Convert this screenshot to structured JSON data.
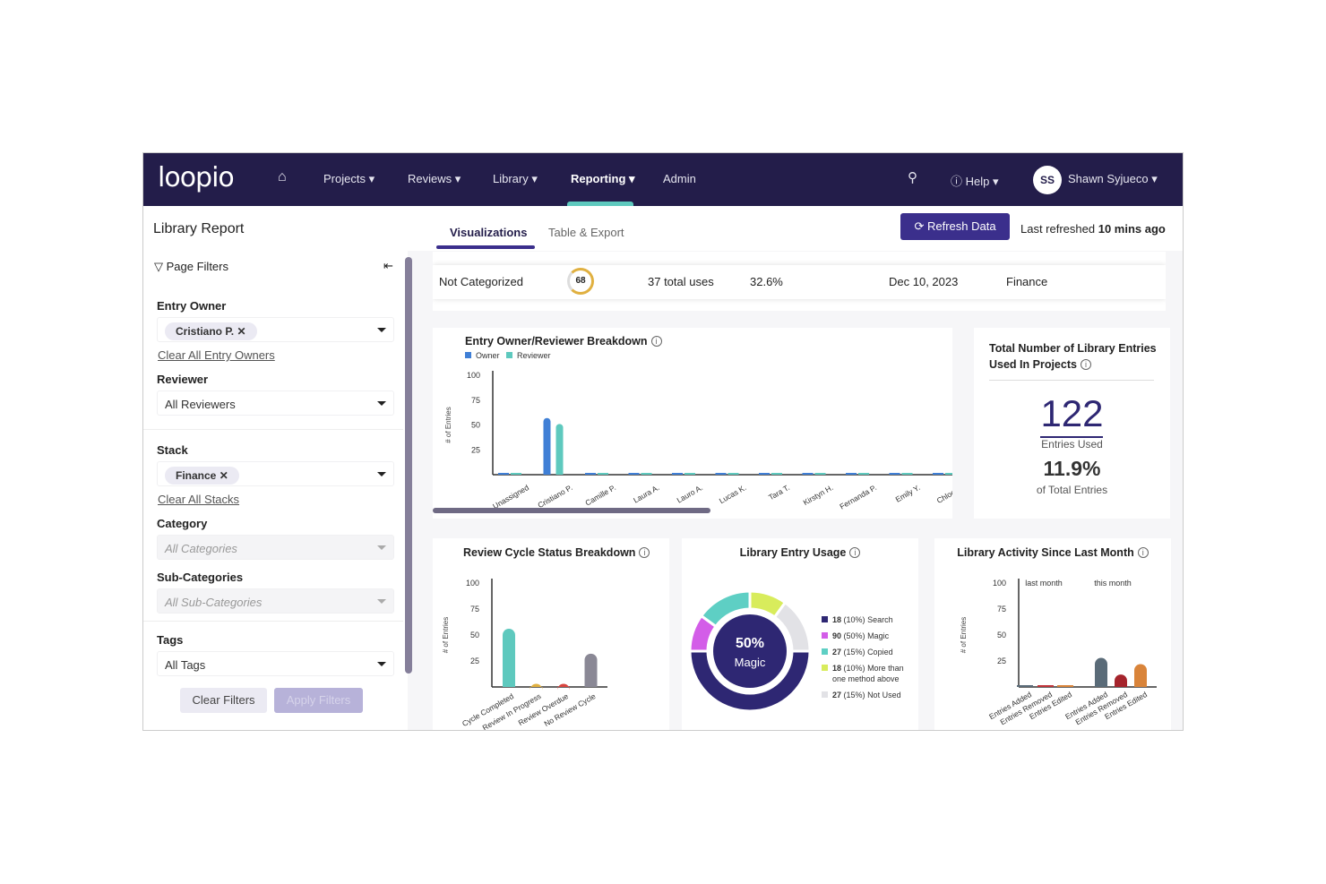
{
  "nav": {
    "logo": "loopio",
    "items": [
      "Projects",
      "Reviews",
      "Library",
      "Reporting",
      "Admin"
    ],
    "help": "Help",
    "user_initials": "SS",
    "user_name": "Shawn Syjueco"
  },
  "header": {
    "title": "Library Report",
    "tabs": [
      "Visualizations",
      "Table & Export"
    ],
    "refresh_label": "Refresh Data",
    "last_refreshed_prefix": "Last refreshed",
    "last_refreshed_value": "10 mins ago"
  },
  "filters": {
    "title": "Page Filters",
    "entry_owner": {
      "label": "Entry Owner",
      "chip": "Cristiano P.",
      "clear": "Clear All Entry Owners"
    },
    "reviewer": {
      "label": "Reviewer",
      "value": "All Reviewers"
    },
    "stack": {
      "label": "Stack",
      "chip": "Finance",
      "clear": "Clear All Stacks"
    },
    "category": {
      "label": "Category",
      "placeholder": "All Categories"
    },
    "subcategory": {
      "label": "Sub-Categories",
      "placeholder": "All Sub-Categories"
    },
    "tags": {
      "label": "Tags",
      "value": "All Tags"
    },
    "clear_btn": "Clear Filters",
    "apply_btn": "Apply Filters"
  },
  "table_row": {
    "name": "Not Categorized",
    "score": "68",
    "uses": "37 total uses",
    "percent": "32.6%",
    "date": "Dec 10, 2023",
    "stack": "Finance"
  },
  "total_card": {
    "title": "Total Number of Library Entries Used In Projects",
    "count": "122",
    "count_label": "Entries Used",
    "percent": "11.9%",
    "percent_label": "of Total Entries"
  },
  "chart_data": [
    {
      "type": "bar",
      "title": "Entry Owner/Reviewer Breakdown",
      "ylabel": "# of Entries",
      "ylim": [
        0,
        100
      ],
      "yticks": [
        100,
        75,
        50,
        25
      ],
      "categories": [
        "Unassigned",
        "Cristiano P.",
        "Camille P.",
        "Laura A.",
        "Lauro A.",
        "Lucas K.",
        "Tara T.",
        "Kirstyn H.",
        "Fernanda P.",
        "Emily Y.",
        "Chloe S."
      ],
      "series": [
        {
          "name": "Owner",
          "color": "#3f7fd6",
          "values": [
            0,
            57,
            0,
            0,
            0,
            0,
            0,
            0,
            0,
            0,
            0
          ]
        },
        {
          "name": "Reviewer",
          "color": "#5ec9be",
          "values": [
            0,
            51,
            0,
            0,
            0,
            0,
            0,
            0,
            0,
            0,
            0
          ]
        }
      ],
      "legend": "top-left"
    },
    {
      "type": "bar",
      "title": "Review Cycle Status Breakdown",
      "ylabel": "# of Entries",
      "ylim": [
        0,
        100
      ],
      "yticks": [
        100,
        75,
        50,
        25
      ],
      "categories": [
        "Cycle Completed",
        "Review In Progress",
        "Review Overdue",
        "No Review Cycle"
      ],
      "values": [
        56,
        3,
        3,
        32
      ],
      "colors": [
        "#5ec9be",
        "#e0b040",
        "#d9443f",
        "#8a8895"
      ]
    },
    {
      "type": "pie",
      "title": "Library Entry Usage",
      "center_value": "50%",
      "center_label": "Magic",
      "slices": [
        {
          "count": "18",
          "pct": "(10%)",
          "label": "Search",
          "value": 10,
          "color": "#2e2773",
          "arc_color": "#d35de8"
        },
        {
          "count": "90",
          "pct": "(50%)",
          "label": "Magic",
          "value": 50,
          "color": "#d35de8",
          "arc_color": "#2e2773"
        },
        {
          "count": "27",
          "pct": "(15%)",
          "label": "Copied",
          "value": 15,
          "color": "#5ecfc4",
          "arc_color": "#5ecfc4"
        },
        {
          "count": "18",
          "pct": "(10%)",
          "label": "More than one method above",
          "value": 10,
          "color": "#d8ec5c",
          "arc_color": "#d8ec5c"
        },
        {
          "count": "27",
          "pct": "(15%)",
          "label": "Not Used",
          "value": 15,
          "color": "#e2e2e6",
          "arc_color": "#e2e2e6"
        }
      ]
    },
    {
      "type": "bar",
      "title": "Library Activity Since Last Month",
      "ylabel": "# of Entries",
      "ylim": [
        0,
        100
      ],
      "yticks": [
        100,
        75,
        50,
        25
      ],
      "groups": [
        "last month",
        "this month"
      ],
      "categories": [
        "Entries Added",
        "Entries Removed",
        "Entries Edited",
        "Entries Added",
        "Entries Removed",
        "Entries Edited"
      ],
      "values": [
        1,
        2,
        1,
        28,
        12,
        22
      ],
      "colors": [
        "#5a6b78",
        "#c0343a",
        "#d9843a",
        "#5a6b78",
        "#a5242c",
        "#d9843a"
      ]
    }
  ]
}
